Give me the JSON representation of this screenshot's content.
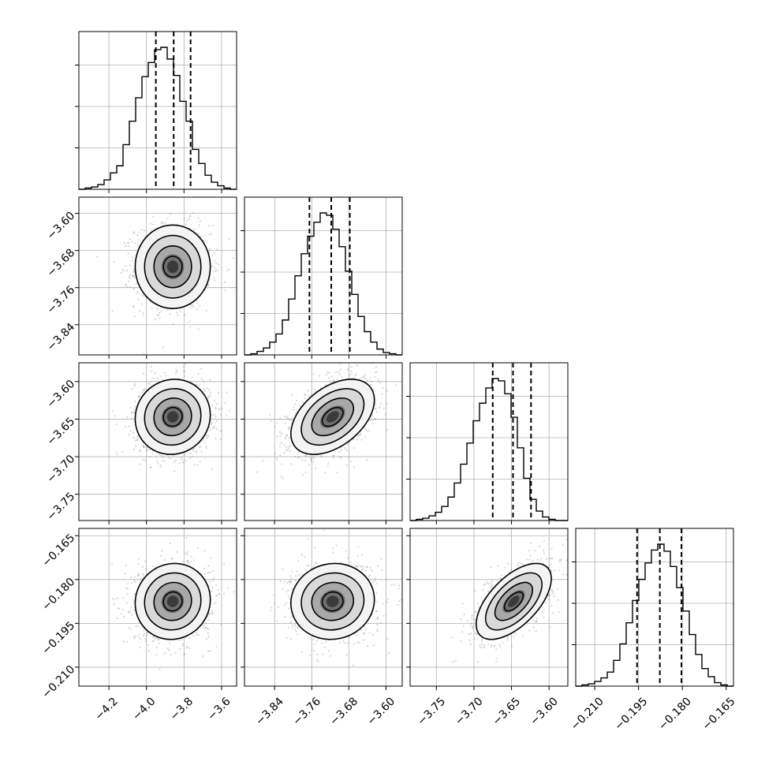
{
  "chart_data": {
    "type": "corner",
    "n_params": 4,
    "quantiles": [
      0.16,
      0.5,
      0.84
    ],
    "grid": true,
    "params": [
      {
        "index": 0,
        "range": [
          -4.36,
          -3.52
        ],
        "ticks": [
          -4.2,
          -4.0,
          -3.8,
          -3.6
        ],
        "tick_labels": [
          "−4.2",
          "−4.0",
          "−3.8",
          "−3.6"
        ],
        "mean": -3.86,
        "sd": 0.1
      },
      {
        "index": 1,
        "range": [
          -3.905,
          -3.565
        ],
        "ticks": [
          -3.84,
          -3.76,
          -3.68,
          -3.6
        ],
        "tick_labels": [
          "−3.84",
          "−3.76",
          "−3.68",
          "−3.60"
        ],
        "mean": -3.715,
        "sd": 0.045
      },
      {
        "index": 2,
        "range": [
          -3.785,
          -3.575
        ],
        "ticks": [
          -3.75,
          -3.7,
          -3.65,
          -3.6
        ],
        "tick_labels": [
          "−3.75",
          "−3.70",
          "−3.65",
          "−3.60"
        ],
        "mean": -3.647,
        "sd": 0.025
      },
      {
        "index": 3,
        "range": [
          -0.2165,
          -0.1625
        ],
        "ticks": [
          -0.21,
          -0.195,
          -0.18,
          -0.165
        ],
        "tick_labels": [
          "−0.210",
          "−0.195",
          "−0.180",
          "−0.165"
        ],
        "mean": -0.1875,
        "sd": 0.0065
      }
    ],
    "marginals": [
      {
        "param": 0,
        "q16": -3.95,
        "q50": -3.855,
        "q84": -3.765,
        "bin_edges_range": [
          -4.36,
          -3.52
        ],
        "counts": [
          0,
          1,
          2,
          4,
          8,
          14,
          20,
          38,
          58,
          78,
          96,
          108,
          119,
          121,
          111,
          97,
          75,
          58,
          34,
          22,
          12,
          6,
          3,
          1,
          0
        ]
      },
      {
        "param": 1,
        "q16": -3.765,
        "q50": -3.718,
        "q84": -3.678,
        "bin_edges_range": [
          -3.905,
          -3.565
        ],
        "counts": [
          0,
          1,
          3,
          6,
          11,
          18,
          30,
          48,
          68,
          87,
          102,
          114,
          122,
          120,
          108,
          93,
          72,
          52,
          33,
          20,
          11,
          5,
          2,
          1,
          0
        ]
      },
      {
        "param": 2,
        "q16": -3.675,
        "q50": -3.648,
        "q84": -3.624,
        "bin_edges_range": [
          -3.785,
          -3.575
        ],
        "counts": [
          0,
          1,
          2,
          4,
          7,
          12,
          20,
          32,
          48,
          66,
          85,
          100,
          113,
          121,
          119,
          108,
          88,
          62,
          36,
          18,
          8,
          3,
          1,
          0,
          0
        ]
      },
      {
        "param": 3,
        "q16": -0.1955,
        "q50": -0.1877,
        "q84": -0.1803,
        "bin_edges_range": [
          -0.2165,
          -0.1625
        ],
        "counts": [
          0,
          1,
          2,
          4,
          7,
          12,
          22,
          36,
          54,
          73,
          91,
          105,
          116,
          121,
          115,
          102,
          84,
          64,
          44,
          27,
          15,
          8,
          3,
          1,
          0
        ]
      }
    ],
    "joints": [
      {
        "x_param": 0,
        "y_param": 1,
        "mean": [
          -3.86,
          -3.715
        ],
        "sd": [
          0.1,
          0.045
        ],
        "rho": 0.0
      },
      {
        "x_param": 0,
        "y_param": 2,
        "mean": [
          -3.86,
          -3.647
        ],
        "sd": [
          0.1,
          0.025
        ],
        "rho": 0.05
      },
      {
        "x_param": 1,
        "y_param": 2,
        "mean": [
          -3.715,
          -3.647
        ],
        "sd": [
          0.045,
          0.025
        ],
        "rho": 0.45
      },
      {
        "x_param": 0,
        "y_param": 3,
        "mean": [
          -3.86,
          -0.1875
        ],
        "sd": [
          0.1,
          0.0065
        ],
        "rho": 0.05
      },
      {
        "x_param": 1,
        "y_param": 3,
        "mean": [
          -3.715,
          -0.1875
        ],
        "sd": [
          0.045,
          0.0065
        ],
        "rho": 0.05
      },
      {
        "x_param": 2,
        "y_param": 3,
        "mean": [
          -3.647,
          -0.1875
        ],
        "sd": [
          0.025,
          0.0065
        ],
        "rho": 0.6
      }
    ],
    "contour_levels_sigma": [
      0.5,
      1.0,
      1.5,
      2.0
    ]
  }
}
